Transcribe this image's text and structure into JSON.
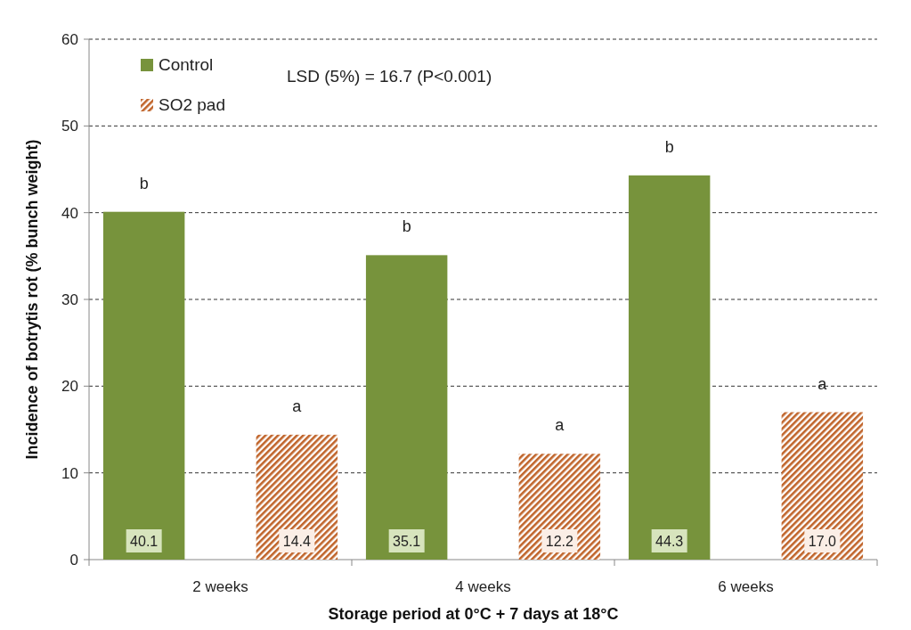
{
  "chart_data": {
    "type": "bar",
    "xlabel": "Storage period at 0°C + 7 days at 18°C",
    "ylabel": "Incidence of botrytis rot (% bunch weight)",
    "categories": [
      "2 weeks",
      "4 weeks",
      "6 weeks"
    ],
    "series": [
      {
        "name": "Control",
        "color": "#77933c",
        "values": [
          40.1,
          35.1,
          44.3
        ],
        "value_labels": [
          "40.1",
          "35.1",
          "44.3"
        ]
      },
      {
        "name": "SO2 pad",
        "color": "#c0642a",
        "values": [
          14.4,
          12.2,
          17.0
        ],
        "value_labels": [
          "14.4",
          "12.2",
          "17.0"
        ]
      }
    ],
    "ylim": [
      0,
      60
    ],
    "yticks": [
      0,
      10,
      20,
      30,
      40,
      50,
      60
    ],
    "grid": "y",
    "legend": "top left",
    "annotations": [
      "LSD (5%) = 16.7 (P<0.001)",
      "b",
      "a",
      "b",
      "a",
      "b",
      "a"
    ]
  }
}
